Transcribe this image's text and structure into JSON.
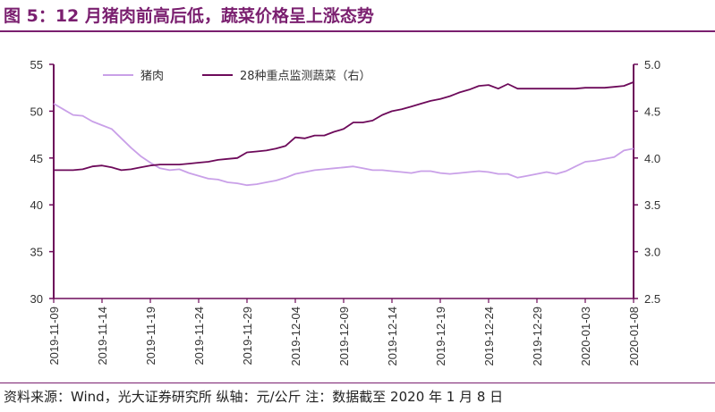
{
  "figure": {
    "title": "图 5：12 月猪肉前高后低，蔬菜价格呈上涨态势",
    "footer": "资料来源：Wind，光大证券研究所    纵轴：元/公斤    注：数据截至 2020 年 1 月 8 日"
  },
  "colors": {
    "pork": "#c9a0e8",
    "veg": "#6d0a5a",
    "brand": "#7a1f6f"
  },
  "chart_data": {
    "type": "line",
    "title": "",
    "xlabel": "",
    "ylabel": "",
    "y_left": {
      "lim": [
        30,
        55
      ],
      "ticks": [
        30,
        35,
        40,
        45,
        50,
        55
      ]
    },
    "y_right": {
      "lim": [
        2.5,
        5.0
      ],
      "ticks": [
        2.5,
        3.0,
        3.5,
        4.0,
        4.5,
        5.0
      ]
    },
    "x_ticks": [
      "2019-11-09",
      "2019-11-14",
      "2019-11-19",
      "2019-11-24",
      "2019-11-29",
      "2019-12-04",
      "2019-12-09",
      "2019-12-14",
      "2019-12-19",
      "2019-12-24",
      "2019-12-29",
      "2020-01-03",
      "2020-01-08"
    ],
    "x": [
      "2019-11-09",
      "2019-11-10",
      "2019-11-11",
      "2019-11-12",
      "2019-11-13",
      "2019-11-14",
      "2019-11-15",
      "2019-11-16",
      "2019-11-17",
      "2019-11-18",
      "2019-11-19",
      "2019-11-20",
      "2019-11-21",
      "2019-11-22",
      "2019-11-23",
      "2019-11-24",
      "2019-11-25",
      "2019-11-26",
      "2019-11-27",
      "2019-11-28",
      "2019-11-29",
      "2019-11-30",
      "2019-12-01",
      "2019-12-02",
      "2019-12-03",
      "2019-12-04",
      "2019-12-05",
      "2019-12-06",
      "2019-12-07",
      "2019-12-08",
      "2019-12-09",
      "2019-12-10",
      "2019-12-11",
      "2019-12-12",
      "2019-12-13",
      "2019-12-14",
      "2019-12-15",
      "2019-12-16",
      "2019-12-17",
      "2019-12-18",
      "2019-12-19",
      "2019-12-20",
      "2019-12-21",
      "2019-12-22",
      "2019-12-23",
      "2019-12-24",
      "2019-12-25",
      "2019-12-26",
      "2019-12-27",
      "2019-12-28",
      "2019-12-29",
      "2019-12-30",
      "2019-12-31",
      "2020-01-01",
      "2020-01-02",
      "2020-01-03",
      "2020-01-04",
      "2020-01-05",
      "2020-01-06",
      "2020-01-07",
      "2020-01-08"
    ],
    "legend_position": "top-left",
    "series": [
      {
        "name": "猪肉",
        "axis": "left",
        "values": [
          50.8,
          50.2,
          49.6,
          49.5,
          48.9,
          48.5,
          48.1,
          47.1,
          46.1,
          45.2,
          44.5,
          43.9,
          43.7,
          43.8,
          43.4,
          43.1,
          42.8,
          42.7,
          42.4,
          42.3,
          42.1,
          42.2,
          42.4,
          42.6,
          42.9,
          43.3,
          43.5,
          43.7,
          43.8,
          43.9,
          44.0,
          44.1,
          43.9,
          43.7,
          43.7,
          43.6,
          43.5,
          43.4,
          43.6,
          43.6,
          43.4,
          43.3,
          43.4,
          43.5,
          43.6,
          43.5,
          43.3,
          43.3,
          42.9,
          43.1,
          43.3,
          43.5,
          43.3,
          43.6,
          44.1,
          44.6,
          44.7,
          44.9,
          45.1,
          45.8,
          46.0
        ]
      },
      {
        "name": "28种重点监测蔬菜（右）",
        "axis": "right",
        "values": [
          3.87,
          3.87,
          3.87,
          3.88,
          3.91,
          3.92,
          3.9,
          3.87,
          3.88,
          3.9,
          3.92,
          3.93,
          3.93,
          3.93,
          3.94,
          3.95,
          3.96,
          3.98,
          3.99,
          4.0,
          4.06,
          4.07,
          4.08,
          4.1,
          4.13,
          4.22,
          4.21,
          4.24,
          4.24,
          4.28,
          4.31,
          4.38,
          4.38,
          4.4,
          4.46,
          4.5,
          4.52,
          4.55,
          4.58,
          4.61,
          4.63,
          4.66,
          4.7,
          4.73,
          4.77,
          4.78,
          4.74,
          4.79,
          4.74,
          4.74,
          4.74,
          4.74,
          4.74,
          4.74,
          4.74,
          4.75,
          4.75,
          4.75,
          4.76,
          4.77,
          4.81
        ]
      }
    ]
  }
}
